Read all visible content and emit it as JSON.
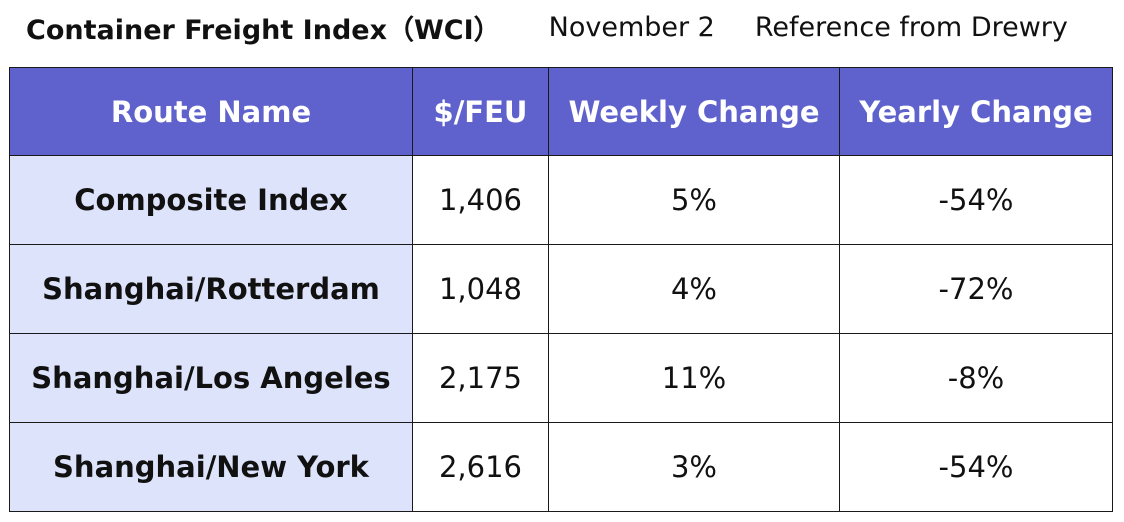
{
  "header": {
    "title": "Container Freight Index（WCI）",
    "date": "November 2",
    "source": "Reference from Drewry"
  },
  "colors": {
    "header_bg": "#5f62cc",
    "header_text": "#ffffff",
    "route_col_bg": "#dde3fa"
  },
  "chart_data": {
    "type": "table",
    "columns": [
      "Route Name",
      "$/FEU",
      "Weekly Change",
      "Yearly Change"
    ],
    "rows": [
      [
        "Composite Index",
        "1,406",
        "5%",
        "-54%"
      ],
      [
        "Shanghai/Rotterdam",
        "1,048",
        "4%",
        "-72%"
      ],
      [
        "Shanghai/Los Angeles",
        "2,175",
        "11%",
        "-8%"
      ],
      [
        "Shanghai/New York",
        "2,616",
        "3%",
        "-54%"
      ]
    ]
  }
}
